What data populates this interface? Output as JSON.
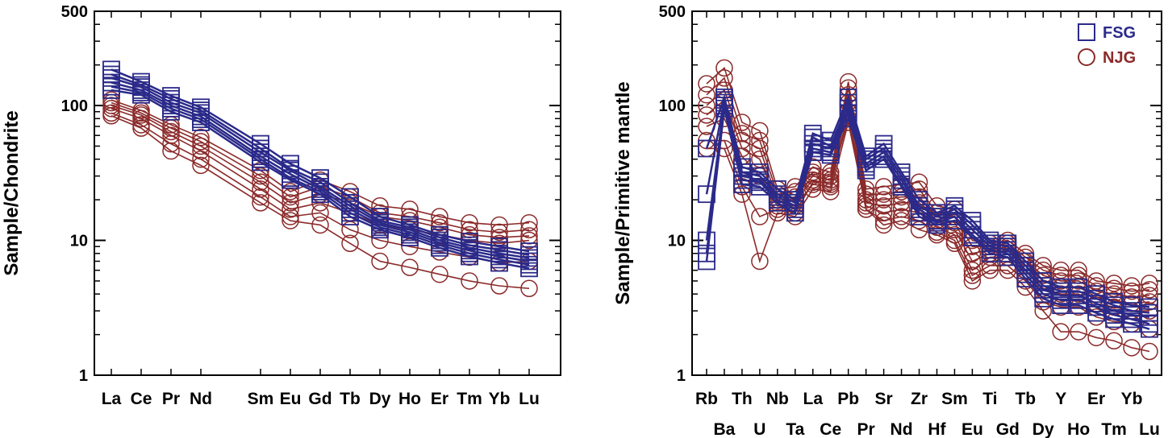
{
  "colors": {
    "FSG": "#2b2a8a",
    "NJG": "#8b2a2a",
    "axis": "#000000"
  },
  "chart_data": [
    {
      "type": "line",
      "scale": "log",
      "ylabel": "Sample/Chondrite",
      "ylim": [
        1,
        500
      ],
      "yticks": [
        {
          "value": 1,
          "label": "1"
        },
        {
          "value": 10,
          "label": "10"
        },
        {
          "value": 100,
          "label": "100"
        },
        {
          "value": 500,
          "label": "500"
        }
      ],
      "x_positions": [
        1,
        2,
        3,
        4,
        6,
        7,
        8,
        9,
        10,
        11,
        12,
        13,
        14,
        15
      ],
      "categories": [
        "La",
        "Ce",
        "Pr",
        "Nd",
        "Sm",
        "Eu",
        "Gd",
        "Tb",
        "Dy",
        "Ho",
        "Er",
        "Tm",
        "Yb",
        "Lu"
      ],
      "series": [
        {
          "group": "FSG",
          "values": [
            185,
            150,
            118,
            97,
            52,
            37,
            29,
            21,
            15,
            13,
            11,
            9.8,
            9.0,
            8.3
          ]
        },
        {
          "group": "FSG",
          "values": [
            170,
            142,
            112,
            92,
            48,
            34,
            27,
            19,
            14,
            12.5,
            10.5,
            9.2,
            8.5,
            7.8
          ]
        },
        {
          "group": "FSG",
          "values": [
            160,
            137,
            105,
            88,
            45,
            33,
            25,
            18,
            13.5,
            12,
            10,
            8.8,
            8.0,
            7.4
          ]
        },
        {
          "group": "FSG",
          "values": [
            148,
            130,
            100,
            83,
            42,
            31,
            24,
            17,
            13,
            11.5,
            9.6,
            8.4,
            7.6,
            7.0
          ]
        },
        {
          "group": "FSG",
          "values": [
            138,
            125,
            95,
            79,
            40,
            29,
            23,
            16,
            12.5,
            11,
            9.2,
            8.0,
            7.2,
            6.6
          ]
        },
        {
          "group": "FSG",
          "values": [
            130,
            120,
            90,
            75,
            38,
            28,
            22,
            15,
            12,
            10.5,
            8.8,
            7.6,
            6.8,
            6.2
          ]
        },
        {
          "group": "NJG",
          "values": [
            110,
            92,
            72,
            58,
            33,
            23,
            28,
            23,
            18,
            17,
            15,
            13.5,
            13,
            13.5
          ]
        },
        {
          "group": "NJG",
          "values": [
            105,
            88,
            68,
            54,
            30,
            21,
            25,
            21,
            16,
            15,
            13.5,
            12,
            11.5,
            12
          ]
        },
        {
          "group": "NJG",
          "values": [
            100,
            85,
            64,
            50,
            27,
            19,
            22,
            19,
            15,
            14,
            12.5,
            11,
            10.5,
            10.8
          ]
        },
        {
          "group": "NJG",
          "values": [
            95,
            80,
            60,
            46,
            24,
            17,
            19,
            16,
            13,
            12,
            11,
            10,
            9.5,
            10
          ]
        },
        {
          "group": "NJG",
          "values": [
            88,
            72,
            52,
            40,
            21,
            15,
            16,
            12,
            10,
            9,
            8.2,
            7.5,
            6.8,
            7
          ]
        },
        {
          "group": "NJG",
          "values": [
            84,
            68,
            46,
            36,
            19,
            14,
            13,
            9.5,
            7,
            6.3,
            5.6,
            5,
            4.6,
            4.4
          ]
        }
      ]
    },
    {
      "type": "line",
      "scale": "log",
      "ylabel": "Sample/Primitive mantle",
      "ylim": [
        1,
        500
      ],
      "yticks": [
        {
          "value": 1,
          "label": "1"
        },
        {
          "value": 10,
          "label": "10"
        },
        {
          "value": 100,
          "label": "100"
        },
        {
          "value": 500,
          "label": "500"
        }
      ],
      "categories": [
        "Rb",
        "Ba",
        "Th",
        "U",
        "Nb",
        "Ta",
        "La",
        "Ce",
        "Pb",
        "Pr",
        "Sr",
        "Nd",
        "Zr",
        "Hf",
        "Sm",
        "Eu",
        "Ti",
        "Gd",
        "Tb",
        "Dy",
        "Y",
        "Ho",
        "Er",
        "Tm",
        "Yb",
        "Lu"
      ],
      "legend": [
        {
          "label": "FSG",
          "marker": "square",
          "group": "FSG"
        },
        {
          "label": "NJG",
          "marker": "circle",
          "group": "NJG"
        }
      ],
      "series": [
        {
          "group": "FSG",
          "values": [
            48,
            115,
            35,
            32,
            24,
            20,
            62,
            55,
            115,
            42,
            52,
            32,
            20,
            16,
            18,
            14,
            10,
            9.5,
            7,
            5,
            4.5,
            4.5,
            4,
            3.5,
            3.3,
            3.2
          ]
        },
        {
          "group": "FSG",
          "values": [
            22,
            110,
            32,
            30,
            22,
            19,
            58,
            50,
            105,
            40,
            48,
            30,
            18,
            15,
            17,
            13,
            9.5,
            9,
            6.5,
            4.6,
            4.2,
            4.2,
            3.7,
            3.3,
            3.0,
            2.9
          ]
        },
        {
          "group": "FSG",
          "values": [
            10,
            105,
            30,
            28,
            21,
            18,
            52,
            48,
            95,
            37,
            45,
            28,
            17,
            14,
            16,
            12,
            9,
            8.5,
            6,
            4.3,
            3.9,
            3.9,
            3.4,
            3.0,
            2.8,
            2.7
          ]
        },
        {
          "group": "FSG",
          "values": [
            8,
            100,
            28,
            27,
            20,
            17,
            48,
            45,
            88,
            35,
            42,
            26,
            16,
            13.5,
            15,
            11,
            8.5,
            8,
            5.6,
            4,
            3.6,
            3.6,
            3.2,
            2.8,
            2.6,
            2.4
          ]
        },
        {
          "group": "FSG",
          "values": [
            7,
            95,
            26,
            25,
            19,
            16,
            45,
            43,
            80,
            33,
            40,
            25,
            15,
            13,
            14,
            10.5,
            8,
            7.5,
            5.2,
            3.7,
            3.3,
            3.3,
            2.9,
            2.6,
            2.4,
            2.2
          ]
        },
        {
          "group": "NJG",
          "values": [
            145,
            190,
            75,
            65,
            24,
            25,
            35,
            32,
            150,
            24,
            25,
            26,
            27,
            18,
            17,
            10,
            9.5,
            10,
            8,
            6.5,
            6,
            6,
            5,
            4.8,
            4.6,
            4.8
          ]
        },
        {
          "group": "NJG",
          "values": [
            120,
            160,
            62,
            55,
            22,
            23,
            32,
            30,
            135,
            22,
            22,
            23,
            24,
            16,
            15,
            9,
            9,
            9.5,
            7.5,
            6,
            5.5,
            5.5,
            4.6,
            4.4,
            4.2,
            4.3
          ]
        },
        {
          "group": "NJG",
          "values": [
            100,
            130,
            55,
            48,
            20,
            21,
            30,
            28,
            120,
            20,
            20,
            21,
            21,
            15,
            13.5,
            8,
            8.5,
            9,
            7,
            5.5,
            5,
            5,
            4.2,
            4.0,
            3.8,
            3.9
          ]
        },
        {
          "group": "NJG",
          "values": [
            85,
            110,
            48,
            40,
            19,
            20,
            28,
            26,
            105,
            19,
            18,
            19,
            19,
            14,
            12,
            7,
            8,
            8.5,
            6.5,
            5,
            4.5,
            4.5,
            3.8,
            3.6,
            3.4,
            3.5
          ]
        },
        {
          "group": "NJG",
          "values": [
            70,
            80,
            42,
            30,
            18,
            18,
            26,
            25,
            90,
            18,
            16,
            17,
            16,
            12.5,
            11,
            6,
            7.5,
            7.5,
            6,
            4.4,
            4,
            4,
            3.4,
            3.2,
            3.0,
            3.0
          ]
        },
        {
          "group": "NJG",
          "values": [
            55,
            55,
            25,
            15,
            17,
            16,
            27,
            27,
            80,
            17,
            14,
            15,
            14,
            11.5,
            10,
            5.5,
            6.5,
            6.5,
            5,
            3.5,
            3.2,
            3.2,
            2.7,
            2.5,
            2.4,
            2.2
          ]
        },
        {
          "group": "NJG",
          "values": [
            48,
            48,
            22,
            7,
            16,
            15,
            24,
            23,
            75,
            17,
            13,
            14,
            12,
            11,
            9.5,
            5,
            6,
            6,
            4.5,
            3,
            2.1,
            2.1,
            1.9,
            1.8,
            1.6,
            1.5
          ]
        }
      ]
    }
  ]
}
